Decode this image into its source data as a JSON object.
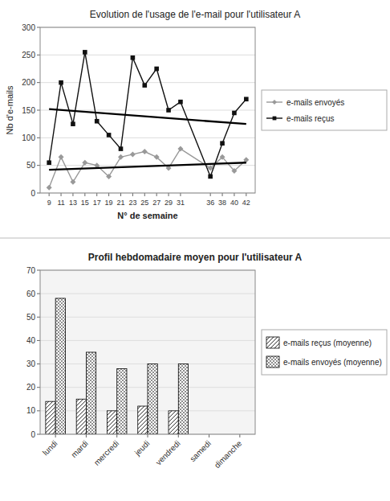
{
  "chart_data": [
    {
      "type": "line",
      "title": "Evolution de l'usage de l'e-mail pour l'utilisateur A",
      "x_label": "N° de semaine",
      "y_label": "Nb d'e-mails",
      "x": [
        9,
        11,
        13,
        15,
        17,
        19,
        21,
        23,
        25,
        27,
        29,
        31,
        36,
        38,
        40,
        42
      ],
      "xlim": [
        7.5,
        43.5
      ],
      "xticks": [
        9,
        11,
        13,
        15,
        17,
        19,
        21,
        23,
        25,
        27,
        29,
        31,
        36,
        38,
        40,
        42
      ],
      "ylim": [
        0,
        300
      ],
      "yticks": [
        0,
        50,
        100,
        150,
        200,
        250,
        300
      ],
      "grid": true,
      "legend": "right",
      "series": [
        {
          "name": "e-mails envoyés",
          "color": "#999999",
          "marker": "diamond",
          "values": [
            10,
            65,
            20,
            55,
            50,
            30,
            65,
            70,
            75,
            65,
            45,
            80,
            45,
            65,
            40,
            60
          ]
        },
        {
          "name": "e-mails reçus",
          "color": "#111111",
          "marker": "square",
          "values": [
            55,
            200,
            125,
            255,
            130,
            105,
            80,
            245,
            195,
            225,
            150,
            165,
            30,
            90,
            145,
            170
          ]
        },
        {
          "color": "#000000",
          "x": [
            9,
            42
          ],
          "values": [
            42,
            55
          ]
        },
        {
          "color": "#000000",
          "x": [
            9,
            42
          ],
          "values": [
            152,
            125
          ]
        }
      ]
    },
    {
      "type": "bar",
      "title": "Profil hebdomadaire moyen pour l'utilisateur A",
      "categories": [
        "lundi",
        "mardi",
        "mercredi",
        "jeudi",
        "vendredi",
        "samedi",
        "dimanche"
      ],
      "ylim": [
        0,
        70
      ],
      "yticks": [
        0,
        10,
        20,
        30,
        40,
        50,
        60,
        70
      ],
      "grid": true,
      "legend": "right",
      "series": [
        {
          "name": "e-mails reçus (moyenne)",
          "values": [
            14,
            15,
            10,
            12,
            10,
            0,
            0
          ]
        },
        {
          "name": "e-mails envoyés (moyenne)",
          "values": [
            58,
            35,
            28,
            30,
            30,
            0,
            0
          ]
        }
      ]
    }
  ]
}
